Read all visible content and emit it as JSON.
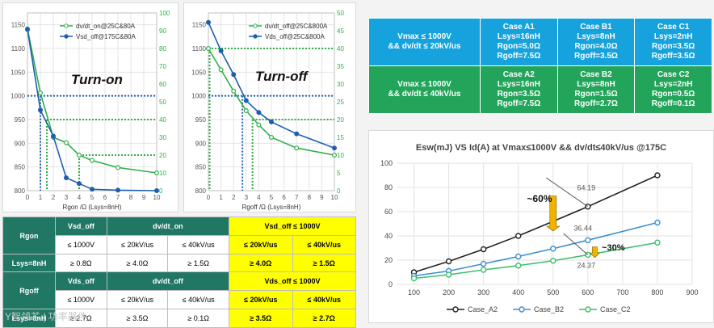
{
  "turn_on_chart": {
    "label": "Turn-on",
    "xlabel": "Rgon /Ω (Lsys=8nH)",
    "legend": [
      "dv/dt_on@25C&80A",
      "Vsd_off@175C&80A"
    ],
    "left_ticks": [
      "1150",
      "1100",
      "1050",
      "1000",
      "950",
      "900",
      "850",
      "800"
    ],
    "right_ticks": [
      "100",
      "90",
      "80",
      "70",
      "60",
      "50",
      "40",
      "30",
      "20",
      "10",
      "0"
    ],
    "x_ticks": [
      "0",
      "1",
      "2",
      "3",
      "4",
      "5",
      "6",
      "7",
      "8",
      "9",
      "10"
    ]
  },
  "turn_off_chart": {
    "label": "Turn-off",
    "xlabel": "Rgoff /Ω (Lsys=8nH)",
    "legend": [
      "dv/dt_off@25C&800A",
      "Vds_off@25C&800A"
    ],
    "left_ticks": [
      "1150",
      "1100",
      "1050",
      "1000",
      "950",
      "900",
      "850",
      "800"
    ],
    "right_ticks": [
      "50",
      "45",
      "40",
      "35",
      "30",
      "25",
      "20",
      "15",
      "10",
      "5",
      "0"
    ],
    "x_ticks": [
      "0",
      "1",
      "2",
      "3",
      "4",
      "5",
      "6",
      "7",
      "8",
      "9",
      "10"
    ]
  },
  "esw_chart": {
    "title": "Esw(mJ) VS Id(A) at Vmax≤1000V && dv/dt≤40kV/us @175C",
    "y_ticks": [
      "100",
      "80",
      "60",
      "40",
      "20",
      "0"
    ],
    "x_ticks": [
      "100",
      "200",
      "300",
      "400",
      "500",
      "600",
      "700",
      "800",
      "900"
    ],
    "labels": {
      "a": "64.19",
      "b": "36.44",
      "c": "24.37",
      "p60": "~60%",
      "p30": "~30%"
    },
    "legend": [
      "Case_A2",
      "Case_B2",
      "Case_C2"
    ]
  },
  "colors": {
    "green_series": "#2fae4a",
    "blue_series": "#1f5fae",
    "teal_header": "#207864",
    "case_blue": "#16a2dc",
    "case_green": "#22a55a",
    "highlight": "#ffff00",
    "a2": "#222222",
    "b2": "#3b8fd1",
    "c2": "#3dbf6a",
    "arrow": "#f0b400"
  },
  "chart_data": [
    {
      "type": "line",
      "title": "Turn-on",
      "xlabel": "Rgon /Ω (Lsys=8nH)",
      "xlim": [
        0,
        10
      ],
      "ylim_left": [
        800,
        1175
      ],
      "ylim_right": [
        0,
        100
      ],
      "series": [
        {
          "name": "dv/dt_on@25C&80A",
          "axis": "right",
          "x": [
            0,
            1,
            2,
            3,
            4,
            5,
            7,
            10
          ],
          "y": [
            91,
            55,
            30,
            27,
            20,
            17,
            13,
            10
          ]
        },
        {
          "name": "Vsd_off@175C&80A",
          "axis": "left",
          "x": [
            0,
            1,
            2,
            3,
            4,
            5,
            7,
            10
          ],
          "y": [
            1140,
            970,
            915,
            827,
            815,
            803,
            801,
            800
          ]
        }
      ]
    },
    {
      "type": "line",
      "title": "Turn-off",
      "xlabel": "Rgoff /Ω (Lsys=8nH)",
      "xlim": [
        0,
        10
      ],
      "ylim_left": [
        800,
        1175
      ],
      "ylim_right": [
        0,
        50
      ],
      "series": [
        {
          "name": "dv/dt_off@25C&800A",
          "axis": "right",
          "x": [
            0,
            1,
            2,
            3,
            4,
            5,
            7,
            10
          ],
          "y": [
            40,
            34,
            28,
            22.5,
            18.5,
            15,
            12,
            10
          ]
        },
        {
          "name": "Vds_off@25C&800A",
          "axis": "left",
          "x": [
            0,
            1,
            2,
            3,
            4,
            5,
            7,
            10
          ],
          "y": [
            1155,
            1095,
            1045,
            990,
            965,
            945,
            920,
            890
          ]
        }
      ]
    },
    {
      "type": "line",
      "title": "Esw(mJ) VS Id(A) at Vmax≤1000V && dv/dt≤40kV/us @175C",
      "xlim": [
        50,
        900
      ],
      "ylim": [
        0,
        100
      ],
      "series": [
        {
          "name": "Case_A2",
          "x": [
            100,
            200,
            300,
            400,
            500,
            600,
            800
          ],
          "y": [
            10,
            19,
            29,
            40,
            52,
            64.19,
            90
          ]
        },
        {
          "name": "Case_B2",
          "x": [
            100,
            200,
            300,
            400,
            500,
            600,
            800
          ],
          "y": [
            7,
            11,
            17,
            23,
            29.5,
            36.44,
            51
          ]
        },
        {
          "name": "Case_C2",
          "x": [
            100,
            200,
            300,
            400,
            500,
            600,
            800
          ],
          "y": [
            5,
            8,
            12,
            15.5,
            19.5,
            24.37,
            34.5
          ]
        }
      ]
    }
  ],
  "rgon_table": {
    "title": "Rgon",
    "vsd_off": "Vsd_off",
    "dvdt_on": "dv/dt_on",
    "vsd_limit": "Vsd_off  ≤ 1000V",
    "row1": [
      "≤ 1000V",
      "≤ 20kV/us",
      "≤ 40kV/us",
      "≤ 20kV/us",
      "≤ 40kV/us"
    ],
    "lsys": "Lsys=8nH",
    "row2": [
      "≥ 0.8Ω",
      "≥ 4.0Ω",
      "≥ 1.5Ω",
      "≥ 4.0Ω",
      "≥ 1.5Ω"
    ]
  },
  "rgoff_table": {
    "title": "Rgoff",
    "vds_off": "Vds_off",
    "dvdt_off": "dv/dt_off",
    "vds_limit": "Vds_off  ≤ 1000V",
    "row1": [
      "≤ 1000V",
      "≤ 20kV/us",
      "≤ 40kV/us",
      "≤ 20kV/us",
      "≤ 40kV/us"
    ],
    "lsys": "Lsys=8nH",
    "row2": [
      "≥ 2.7Ω",
      "≥ 3.5Ω",
      "≥ 0.1Ω",
      "≥ 3.5Ω",
      "≥ 2.7Ω"
    ]
  },
  "cases": {
    "row1_cond": "Vmax ≤ 1000V\n&& dv/dt ≤ 20kV/us",
    "row2_cond": "Vmax ≤ 1000V\n&& dv/dt ≤ 40kV/us",
    "a1": "Case A1\nLsys=16nH\nRgon=5.0Ω\nRgoff=7.5Ω",
    "b1": "Case B1\nLsys=8nH\nRgon=4.0Ω\nRgoff=3.5Ω",
    "c1": "Case C1\nLsys=2nH\nRgon=3.5Ω\nRgoff=3.5Ω",
    "a2": "Case A2\nLsys=16nH\nRgon=3.5Ω\nRgoff=7.5Ω",
    "b2": "Case B2\nLsys=8nH\nRgon=1.5Ω\nRgoff=2.7Ω",
    "c2": "Case C2\nLsys=2nH\nRgon=0.5Ω\nRgoff=0.1Ω"
  },
  "watermark": "Y智领芯 | 功率器件"
}
